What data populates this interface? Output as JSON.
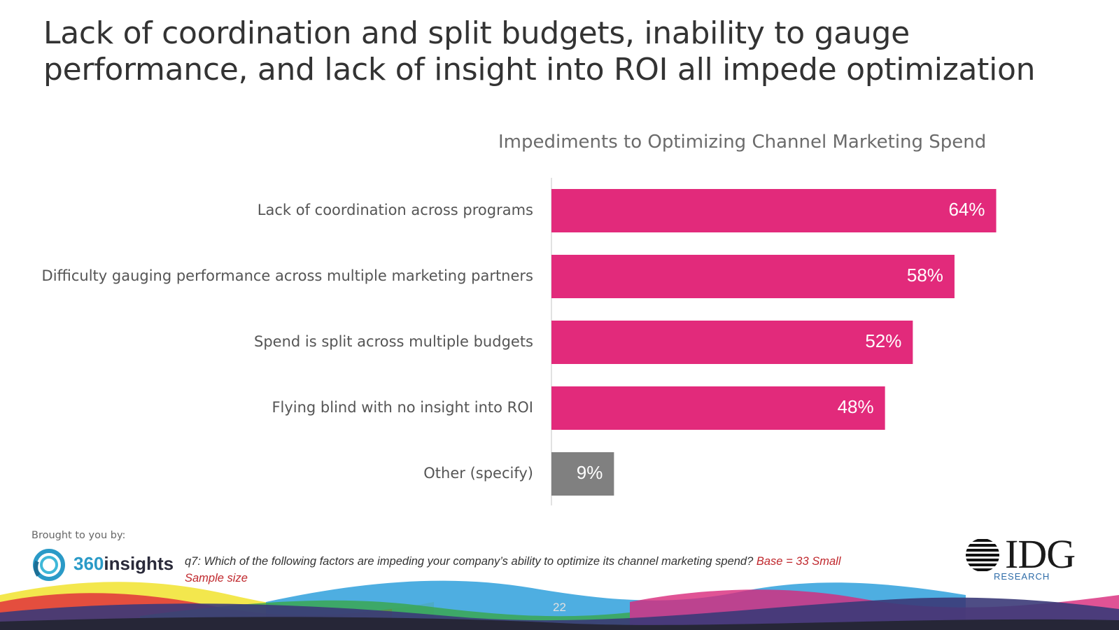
{
  "slide": {
    "title": "Lack of coordination and split budgets, inability to gauge performance, and lack of insight into ROI all impede optimization",
    "page_number": "22"
  },
  "chart_data": {
    "type": "bar",
    "orientation": "horizontal",
    "title": "Impediments to Optimizing Channel Marketing Spend",
    "categories": [
      "Lack of coordination across programs",
      "Difficulty gauging performance across multiple marketing partners",
      "Spend is split across multiple budgets",
      "Flying blind with no insight into ROI",
      "Other (specify)"
    ],
    "values": [
      64,
      58,
      52,
      48,
      9
    ],
    "value_labels": [
      "64%",
      "58%",
      "52%",
      "48%",
      "9%"
    ],
    "unit": "%",
    "xlim": [
      0,
      80
    ],
    "bar_colors": [
      "#e22a7b",
      "#e22a7b",
      "#e22a7b",
      "#e22a7b",
      "#808080"
    ],
    "grid": false,
    "legend": "none"
  },
  "footer": {
    "brought_by": "Brought to you by:",
    "sponsor_logo": {
      "num": "360",
      "word": "insights"
    },
    "question": "q7: Which of the following factors are impeding your company’s ability to optimize its channel marketing spend?",
    "base_note": "Base = 33 Small Sample size",
    "publisher_logo": {
      "letters": "IDG",
      "sub": "RESEARCH"
    }
  },
  "colors": {
    "accent": "#e22a7b",
    "other": "#808080",
    "wave_yellow": "#f2e43a",
    "wave_red": "#e0323c",
    "wave_blue": "#2fa0dc",
    "wave_green": "#3aa64a",
    "wave_navy": "#3b3a78",
    "wave_magenta": "#d8287a"
  }
}
